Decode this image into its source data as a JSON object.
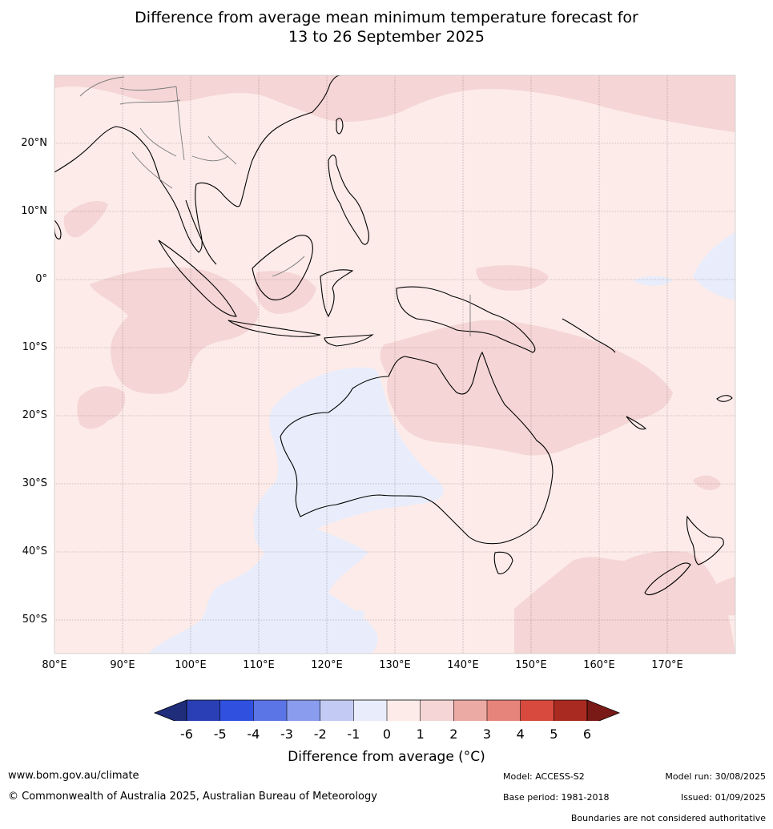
{
  "title": {
    "line1": "Difference from average mean minimum temperature forecast for",
    "line2": "13 to 26 September 2025"
  },
  "map": {
    "lat_labels": [
      "20°N",
      "10°N",
      "0°",
      "10°S",
      "20°S",
      "30°S",
      "40°S",
      "50°S"
    ],
    "lon_labels": [
      "80°E",
      "90°E",
      "100°E",
      "110°E",
      "120°E",
      "130°E",
      "140°E",
      "150°E",
      "160°E",
      "170°E"
    ],
    "lon_range": [
      80,
      180
    ],
    "lat_range": [
      -55,
      30
    ],
    "region_values": {
      "background": "0 to 1",
      "northern_pacific_band": "1 to 2",
      "indian_ocean_patch": "1 to 2",
      "northern_australia": "1 to 2",
      "western_australia": "-1 to 0",
      "southern_ocean_tongue": "-1 to 0",
      "tasman_south": "1 to 2",
      "equatorial_pacific_east": "-1 to 0"
    }
  },
  "colorbar": {
    "ticks": [
      "-6",
      "-5",
      "-4",
      "-3",
      "-2",
      "-1",
      "0",
      "1",
      "2",
      "3",
      "4",
      "5",
      "6"
    ],
    "colors": [
      "#1f2d7a",
      "#2a3fb5",
      "#3050e0",
      "#5b74e6",
      "#8a9ced",
      "#c3cbf4",
      "#e9edfb",
      "#fcebe9",
      "#f5d5d5",
      "#ecaaa4",
      "#e6847c",
      "#d94a3e",
      "#a92a20",
      "#7a1a16"
    ],
    "title": "Difference from average (°C)"
  },
  "footer": {
    "website": "www.bom.gov.au/climate",
    "copyright": "© Commonwealth of Australia 2025, Australian Bureau of Meteorology",
    "model": "Model: ACCESS-S2",
    "base_period": "Base period: 1981-2018",
    "model_run": "Model run: 30/08/2025",
    "issued": "Issued: 01/09/2025",
    "disclaimer": "Boundaries are not considered authoritative"
  }
}
